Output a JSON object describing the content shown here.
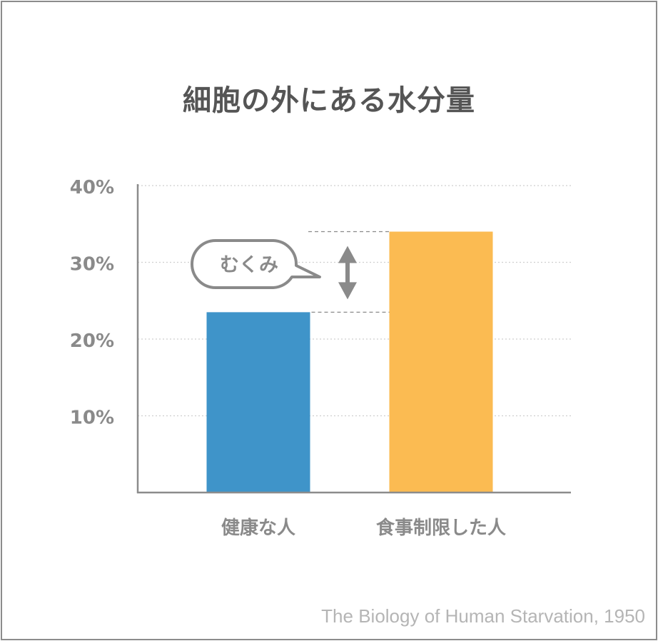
{
  "chart_data": {
    "type": "bar",
    "title": "細胞の外にある水分量",
    "categories": [
      "健康な人",
      "食事制限した人"
    ],
    "values": [
      23.5,
      34.0
    ],
    "colors": [
      "#3f94c9",
      "#fbbb52"
    ],
    "ylim": [
      0,
      40
    ],
    "yticks": [
      10,
      20,
      30,
      40
    ],
    "ytick_labels": [
      "10%",
      "20%",
      "30%",
      "40%"
    ],
    "grid": true,
    "annotation": "むくみ"
  },
  "source": "The Biology of Human Starvation, 1950"
}
